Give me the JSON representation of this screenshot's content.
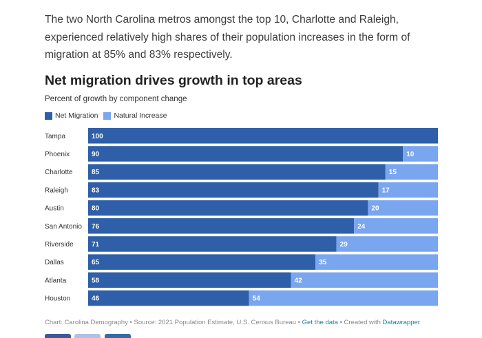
{
  "intro_text": "The two North Carolina metros amongst the top 10, Charlotte and Raleigh, experienced relatively high shares of their population increases in the form of migration at 85% and 83% respectively.",
  "colors": {
    "net_migration": "#2e5fa8",
    "natural_increase": "#7aa6ef",
    "title": "#222222",
    "link": "#1d81a2",
    "share_buttons": [
      "#3b5998",
      "#a9c4e6",
      "#2f6fa6"
    ]
  },
  "footer": {
    "source_text": "Chart: Carolina Demography • Source: 2021 Population Estimate, U.S. Census Bureau • ",
    "get_data": "Get the data",
    "created_with": " • Created with ",
    "datawrapper": "Datawrapper"
  },
  "chart_data": {
    "type": "bar",
    "orientation": "horizontal",
    "stacked": true,
    "title": "Net migration drives growth in top areas",
    "subtitle": "Percent of growth by component change",
    "categories": [
      "Tampa",
      "Phoenix",
      "Charlotte",
      "Raleigh",
      "Austin",
      "San Antonio",
      "Riverside",
      "Dallas",
      "Atlanta",
      "Houston"
    ],
    "series": [
      {
        "name": "Net Migration",
        "values": [
          100,
          90,
          85,
          83,
          80,
          76,
          71,
          65,
          58,
          46
        ]
      },
      {
        "name": "Natural Increase",
        "values": [
          0,
          10,
          15,
          17,
          20,
          24,
          29,
          35,
          42,
          54
        ]
      }
    ],
    "xlim": [
      0,
      100
    ],
    "legend_position": "top-left",
    "grid": false,
    "data_labels": true
  }
}
